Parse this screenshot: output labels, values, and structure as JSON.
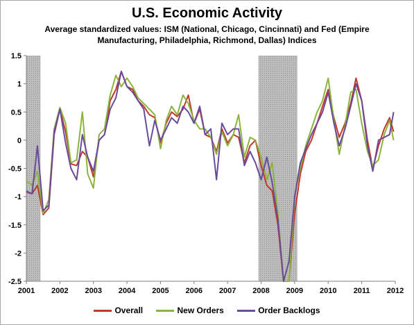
{
  "chart_data": {
    "type": "line",
    "title": "U.S. Economic Activity",
    "subtitle": "Average standardized values: ISM (National, Chicago, Cincinnati) and Fed (Empire Manufacturing, Philadelphia, Richmond, Dallas) Indices",
    "xlabel": "",
    "ylabel": "",
    "xlim": [
      2001.0,
      2012.0
    ],
    "ylim": [
      -2.5,
      1.5
    ],
    "xticks": [
      "2001",
      "2002",
      "2003",
      "2004",
      "2005",
      "2006",
      "2007",
      "2008",
      "2009",
      "2010",
      "2011",
      "2012"
    ],
    "yticks": [
      "1.5",
      "1",
      "0.5",
      "0",
      "-0.5",
      "-1",
      "-1.5",
      "-2",
      "-2.5"
    ],
    "grid": false,
    "legend_position": "bottom",
    "shaded_periods": [
      [
        2001.0,
        2001.42
      ],
      [
        2007.92,
        2009.08
      ]
    ],
    "series": [
      {
        "name": "Overall",
        "color": "#c0392b",
        "x": [
          2001.0,
          2001.17,
          2001.33,
          2001.5,
          2001.67,
          2001.83,
          2002.0,
          2002.17,
          2002.33,
          2002.5,
          2002.67,
          2002.83,
          2003.0,
          2003.17,
          2003.33,
          2003.5,
          2003.67,
          2003.83,
          2004.0,
          2004.17,
          2004.33,
          2004.5,
          2004.67,
          2004.83,
          2005.0,
          2005.17,
          2005.33,
          2005.5,
          2005.67,
          2005.83,
          2006.0,
          2006.17,
          2006.33,
          2006.5,
          2006.67,
          2006.83,
          2007.0,
          2007.17,
          2007.33,
          2007.5,
          2007.67,
          2007.83,
          2008.0,
          2008.17,
          2008.33,
          2008.5,
          2008.67,
          2008.83,
          2009.0,
          2009.17,
          2009.33,
          2009.5,
          2009.67,
          2009.83,
          2010.0,
          2010.17,
          2010.33,
          2010.5,
          2010.67,
          2010.83,
          2011.0,
          2011.17,
          2011.33,
          2011.5,
          2011.67,
          2011.83,
          2011.95
        ],
        "values": [
          -0.92,
          -0.95,
          -0.8,
          -1.32,
          -1.2,
          0.1,
          0.55,
          0.15,
          -0.42,
          -0.45,
          -0.2,
          -0.3,
          -0.65,
          0.0,
          0.1,
          0.7,
          0.9,
          1.22,
          0.95,
          0.9,
          0.7,
          0.6,
          0.45,
          0.4,
          -0.05,
          0.3,
          0.5,
          0.42,
          0.55,
          0.8,
          0.3,
          0.55,
          0.1,
          0.05,
          -0.2,
          0.2,
          -0.05,
          0.1,
          0.05,
          -0.4,
          -0.1,
          0.0,
          -0.45,
          -0.8,
          -0.9,
          -1.5,
          -2.5,
          -2.5,
          -1.3,
          -0.6,
          -0.2,
          0.0,
          0.3,
          0.6,
          0.9,
          0.4,
          0.05,
          0.3,
          0.65,
          1.1,
          0.7,
          0.0,
          -0.5,
          -0.1,
          0.2,
          0.4,
          0.15
        ]
      },
      {
        "name": "New Orders",
        "color": "#8cb43c",
        "x": [
          2001.0,
          2001.17,
          2001.33,
          2001.5,
          2001.67,
          2001.83,
          2002.0,
          2002.17,
          2002.33,
          2002.5,
          2002.67,
          2002.83,
          2003.0,
          2003.17,
          2003.33,
          2003.5,
          2003.67,
          2003.83,
          2004.0,
          2004.17,
          2004.33,
          2004.5,
          2004.67,
          2004.83,
          2005.0,
          2005.17,
          2005.33,
          2005.5,
          2005.67,
          2005.83,
          2006.0,
          2006.17,
          2006.33,
          2006.5,
          2006.67,
          2006.83,
          2007.0,
          2007.17,
          2007.33,
          2007.5,
          2007.67,
          2007.83,
          2008.0,
          2008.17,
          2008.33,
          2008.5,
          2008.67,
          2008.83,
          2009.0,
          2009.17,
          2009.33,
          2009.5,
          2009.67,
          2009.83,
          2010.0,
          2010.17,
          2010.33,
          2010.5,
          2010.67,
          2010.83,
          2011.0,
          2011.17,
          2011.33,
          2011.5,
          2011.67,
          2011.83,
          2011.95
        ],
        "values": [
          -0.72,
          -0.8,
          -0.55,
          -1.3,
          -1.05,
          0.2,
          0.58,
          0.3,
          -0.4,
          -0.35,
          0.5,
          -0.6,
          -0.85,
          0.1,
          0.2,
          0.8,
          1.15,
          0.95,
          1.1,
          0.95,
          0.75,
          0.65,
          0.55,
          0.45,
          -0.15,
          0.35,
          0.6,
          0.45,
          0.8,
          0.65,
          0.35,
          0.2,
          0.2,
          0.05,
          -0.25,
          0.15,
          -0.1,
          0.1,
          0.45,
          -0.3,
          0.05,
          0.0,
          -0.3,
          -0.7,
          -0.4,
          -1.3,
          -2.5,
          -2.5,
          -1.0,
          -0.5,
          -0.1,
          0.2,
          0.5,
          0.7,
          1.1,
          0.35,
          -0.25,
          0.25,
          0.85,
          0.9,
          0.3,
          -0.2,
          -0.45,
          -0.35,
          0.1,
          0.35,
          0.0
        ]
      },
      {
        "name": "Order Backlogs",
        "color": "#6a4a9a",
        "x": [
          2001.0,
          2001.17,
          2001.33,
          2001.5,
          2001.67,
          2001.83,
          2002.0,
          2002.17,
          2002.33,
          2002.5,
          2002.67,
          2002.83,
          2003.0,
          2003.17,
          2003.33,
          2003.5,
          2003.67,
          2003.83,
          2004.0,
          2004.17,
          2004.33,
          2004.5,
          2004.67,
          2004.83,
          2005.0,
          2005.17,
          2005.33,
          2005.5,
          2005.67,
          2005.83,
          2006.0,
          2006.17,
          2006.33,
          2006.5,
          2006.67,
          2006.83,
          2007.0,
          2007.17,
          2007.33,
          2007.5,
          2007.67,
          2007.83,
          2008.0,
          2008.17,
          2008.33,
          2008.5,
          2008.67,
          2008.83,
          2009.0,
          2009.17,
          2009.33,
          2009.5,
          2009.67,
          2009.83,
          2010.0,
          2010.17,
          2010.33,
          2010.5,
          2010.67,
          2010.83,
          2011.0,
          2011.17,
          2011.33,
          2011.5,
          2011.67,
          2011.83,
          2011.95
        ],
        "values": [
          -0.9,
          -0.95,
          -0.1,
          -1.25,
          -1.15,
          0.15,
          0.55,
          -0.05,
          -0.5,
          -0.7,
          0.1,
          -0.3,
          -0.55,
          0.0,
          0.1,
          0.55,
          0.75,
          1.22,
          0.95,
          0.85,
          0.7,
          0.55,
          -0.1,
          0.35,
          0.0,
          0.2,
          0.4,
          0.3,
          0.6,
          0.5,
          0.3,
          0.6,
          0.1,
          0.2,
          -0.7,
          0.3,
          0.1,
          0.2,
          0.2,
          -0.45,
          -0.2,
          -0.4,
          -0.7,
          -0.3,
          -0.75,
          -1.4,
          -2.5,
          -2.15,
          -1.0,
          -0.4,
          -0.15,
          0.1,
          0.3,
          0.5,
          0.85,
          0.3,
          -0.1,
          0.2,
          0.6,
          1.0,
          0.7,
          -0.1,
          -0.55,
          0.0,
          0.05,
          0.1,
          0.5
        ]
      }
    ]
  }
}
